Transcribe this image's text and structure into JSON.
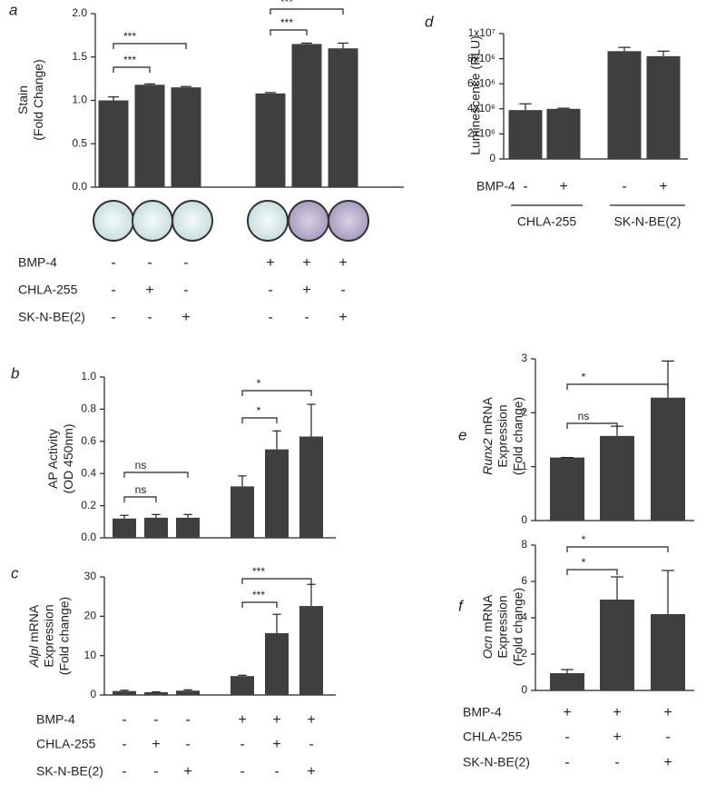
{
  "chart_data": [
    {
      "type": "bar",
      "panel": "a",
      "color": "#3f3f3f",
      "ylabel": [
        "Stain",
        "(Fold Change)"
      ],
      "ylim": [
        0,
        2
      ],
      "yticks": [
        {
          "value": 0,
          "label": "0.0"
        },
        0.5,
        {
          "value": 1,
          "label": "1.0"
        },
        1.5,
        {
          "value": 2,
          "label": "2.0"
        }
      ],
      "values": [
        1.0,
        1.18,
        1.15,
        1.08,
        1.65,
        1.6
      ],
      "errors": [
        0.04,
        0.01,
        0.01,
        0.01,
        0.01,
        0.06
      ],
      "annotations": [
        "***",
        "***",
        "***",
        "***"
      ],
      "conditions": [
        {
          "name": "BMP-4",
          "values": [
            "-",
            "-",
            "-",
            "+",
            "+",
            "+"
          ]
        },
        {
          "name": "CHLA-255",
          "values": [
            "-",
            "+",
            "-",
            "-",
            "+",
            "-"
          ]
        },
        {
          "name": "SK-N-BE(2)",
          "values": [
            "-",
            "-",
            "+",
            "-",
            "-",
            "+"
          ]
        }
      ]
    },
    {
      "type": "bar",
      "panel": "b",
      "color": "#3f3f3f",
      "ylabel": [
        "AP Activity",
        "(OD 450nm)"
      ],
      "ylim": [
        0,
        1
      ],
      "yticks": [
        {
          "value": 0,
          "label": "0.0"
        },
        0.2,
        0.4,
        0.6,
        0.8,
        {
          "value": 1,
          "label": "1.0"
        }
      ],
      "values": [
        0.12,
        0.125,
        0.125,
        0.32,
        0.55,
        0.63
      ],
      "errors": [
        0.02,
        0.02,
        0.02,
        0.065,
        0.115,
        0.2
      ],
      "annotations": [
        "ns",
        "ns",
        "*",
        "*"
      ]
    },
    {
      "type": "bar",
      "panel": "c",
      "color": "#3f3f3f",
      "ylabel": [
        [
          {
            "text": "Alpl",
            "italic": true
          },
          {
            "text": " mRNA"
          }
        ],
        "Expression",
        "(Fold change)"
      ],
      "ylim": [
        0,
        30
      ],
      "yticks": [
        0,
        10,
        20,
        30
      ],
      "values": [
        1.0,
        0.7,
        1.1,
        4.8,
        15.7,
        22.6
      ],
      "errors": [
        0.2,
        0.1,
        0.2,
        0.2,
        4.8,
        5.5
      ],
      "annotations": [
        "***",
        "***"
      ],
      "conditions": [
        {
          "name": "BMP-4",
          "values": [
            "-",
            "-",
            "-",
            "+",
            "+",
            "+"
          ]
        },
        {
          "name": "CHLA-255",
          "values": [
            "-",
            "+",
            "-",
            "-",
            "+",
            "-"
          ]
        },
        {
          "name": "SK-N-BE(2)",
          "values": [
            "-",
            "-",
            "+",
            "-",
            "-",
            "+"
          ]
        }
      ]
    },
    {
      "type": "bar",
      "panel": "d",
      "color": "#3f3f3f",
      "ylabel": [
        "Luminescence (RLU)"
      ],
      "ylim": [
        0,
        10000000
      ],
      "yticks": [
        0,
        {
          "value": 2000000,
          "label": "2x10⁶"
        },
        {
          "value": 4000000,
          "label": "4x10⁶"
        },
        {
          "value": 6000000,
          "label": "6x10⁶"
        },
        {
          "value": 8000000,
          "label": "8x10⁶"
        },
        {
          "value": 10000000,
          "label": "1x10⁷"
        }
      ],
      "values": [
        3900000,
        4000000,
        8600000,
        8200000
      ],
      "errors": [
        500000,
        50000,
        300000,
        400000
      ],
      "conditions": [
        {
          "name": "BMP-4",
          "values": [
            "-",
            "+",
            "-",
            "+"
          ]
        }
      ],
      "groups": [
        "CHLA-255",
        "SK-N-BE(2)"
      ]
    },
    {
      "type": "bar",
      "panel": "e",
      "color": "#3f3f3f",
      "ylabel": [
        [
          {
            "text": "Runx2",
            "italic": true
          },
          {
            "text": " mRNA"
          }
        ],
        "Expression",
        "(Fold change)"
      ],
      "ylim": [
        0,
        3
      ],
      "yticks": [
        0,
        1,
        2,
        3
      ],
      "values": [
        1.17,
        1.57,
        2.28
      ],
      "errors": [
        0.0,
        0.18,
        0.68
      ],
      "annotations": [
        "*",
        "ns"
      ]
    },
    {
      "type": "bar",
      "panel": "f",
      "color": "#3f3f3f",
      "ylabel": [
        [
          {
            "text": "Ocn",
            "italic": true
          },
          {
            "text": " mRNA"
          }
        ],
        "Expression",
        "(Fold change)"
      ],
      "ylim": [
        0,
        8
      ],
      "yticks": [
        0,
        2,
        4,
        6,
        8
      ],
      "values": [
        0.95,
        5.0,
        4.2
      ],
      "errors": [
        0.2,
        1.25,
        2.4
      ],
      "annotations": [
        "*",
        "*"
      ],
      "conditions": [
        {
          "name": "BMP-4",
          "values": [
            "+",
            "+",
            "+"
          ]
        },
        {
          "name": "CHLA-255",
          "values": [
            "-",
            "+",
            "-"
          ]
        },
        {
          "name": "SK-N-BE(2)",
          "values": [
            "-",
            "-",
            "+"
          ]
        }
      ]
    }
  ]
}
